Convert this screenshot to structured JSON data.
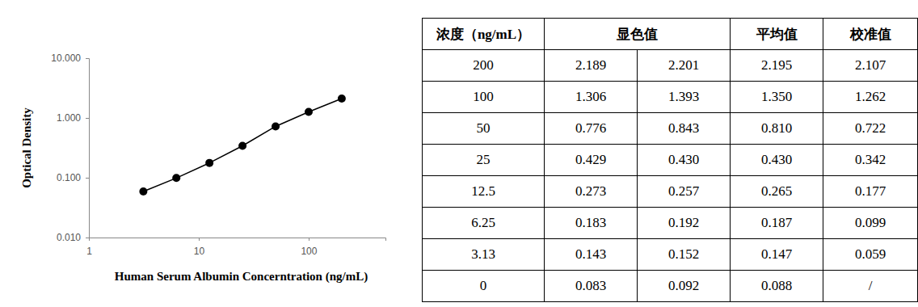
{
  "chart_data": {
    "type": "line",
    "x_label": "Human Serum Albumin Concerntration (ng/mL)",
    "y_label": "Optical Density",
    "x": [
      3.13,
      6.25,
      12.5,
      25,
      50,
      100,
      200
    ],
    "values": [
      0.059,
      0.099,
      0.177,
      0.342,
      0.722,
      1.262,
      2.107
    ],
    "color": "#000000",
    "marker": "circle",
    "line_style": "solid",
    "log": true,
    "xlim": [
      1,
      500
    ],
    "xticks": [
      1,
      10,
      100
    ],
    "ylim": [
      0.01,
      10
    ],
    "yticks": [
      {
        "value": 0.01,
        "label": "0.010"
      },
      {
        "value": 0.1,
        "label": "0.100"
      },
      {
        "value": 1,
        "label": "1.000"
      },
      {
        "value": 10,
        "label": "10.000"
      }
    ],
    "grid": false
  },
  "table": {
    "header": [
      "浓度（ng/mL）",
      "显色值",
      "平均值",
      "校准值"
    ],
    "rows": [
      [
        "200",
        "2.189",
        "2.201",
        "2.195",
        "2.107"
      ],
      [
        "100",
        "1.306",
        "1.393",
        "1.350",
        "1.262"
      ],
      [
        "50",
        "0.776",
        "0.843",
        "0.810",
        "0.722"
      ],
      [
        "25",
        "0.429",
        "0.430",
        "0.430",
        "0.342"
      ],
      [
        "12.5",
        "0.273",
        "0.257",
        "0.265",
        "0.177"
      ],
      [
        "6.25",
        "0.183",
        "0.192",
        "0.187",
        "0.099"
      ],
      [
        "3.13",
        "0.143",
        "0.152",
        "0.147",
        "0.059"
      ],
      [
        "0",
        "0.083",
        "0.092",
        "0.088",
        "/"
      ]
    ]
  }
}
